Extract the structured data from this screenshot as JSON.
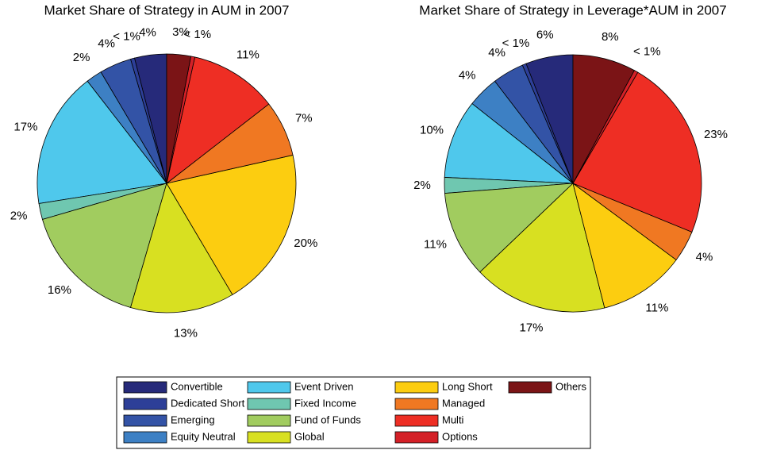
{
  "chart_data": [
    {
      "type": "pie",
      "title": "Market Share of Strategy in AUM in 2007",
      "categories": [
        "Convertible",
        "Dedicated Short",
        "Emerging",
        "Equity Neutral",
        "Event Driven",
        "Fixed Income",
        "Fund of Funds",
        "Global",
        "Long Short",
        "Managed",
        "Multi",
        "Options",
        "Others"
      ],
      "values": [
        4,
        0.5,
        4,
        2,
        17,
        2,
        16,
        13,
        20,
        7,
        11,
        0.5,
        3
      ],
      "value_labels": [
        "4%",
        "< 1%",
        "4%",
        "2%",
        "17%",
        "2%",
        "16%",
        "13%",
        "20%",
        "7%",
        "11%",
        "< 1%",
        "3%"
      ],
      "colors": [
        "#262a7a",
        "#2d3f98",
        "#3353a6",
        "#3d80c4",
        "#4fc8ec",
        "#6fc7b0",
        "#a1cc5f",
        "#d8e021",
        "#fccd10",
        "#f07822",
        "#ee2e24",
        "#d42027",
        "#7b1416"
      ]
    },
    {
      "type": "pie",
      "title": "Market Share of Strategy in Leverage*AUM in 2007",
      "categories": [
        "Convertible",
        "Dedicated Short",
        "Emerging",
        "Equity Neutral",
        "Event Driven",
        "Fixed Income",
        "Fund of Funds",
        "Global",
        "Long Short",
        "Managed",
        "Multi",
        "Options",
        "Others"
      ],
      "values": [
        6,
        0.5,
        4,
        4,
        10,
        2,
        11,
        17,
        11,
        4,
        23,
        0.5,
        8
      ],
      "value_labels": [
        "6%",
        "< 1%",
        "4%",
        "4%",
        "10%",
        "2%",
        "11%",
        "17%",
        "11%",
        "4%",
        "23%",
        "< 1%",
        "8%"
      ],
      "colors": [
        "#262a7a",
        "#2d3f98",
        "#3353a6",
        "#3d80c4",
        "#4fc8ec",
        "#6fc7b0",
        "#a1cc5f",
        "#d8e021",
        "#fccd10",
        "#f07822",
        "#ee2e24",
        "#d42027",
        "#7b1416"
      ]
    }
  ]
}
